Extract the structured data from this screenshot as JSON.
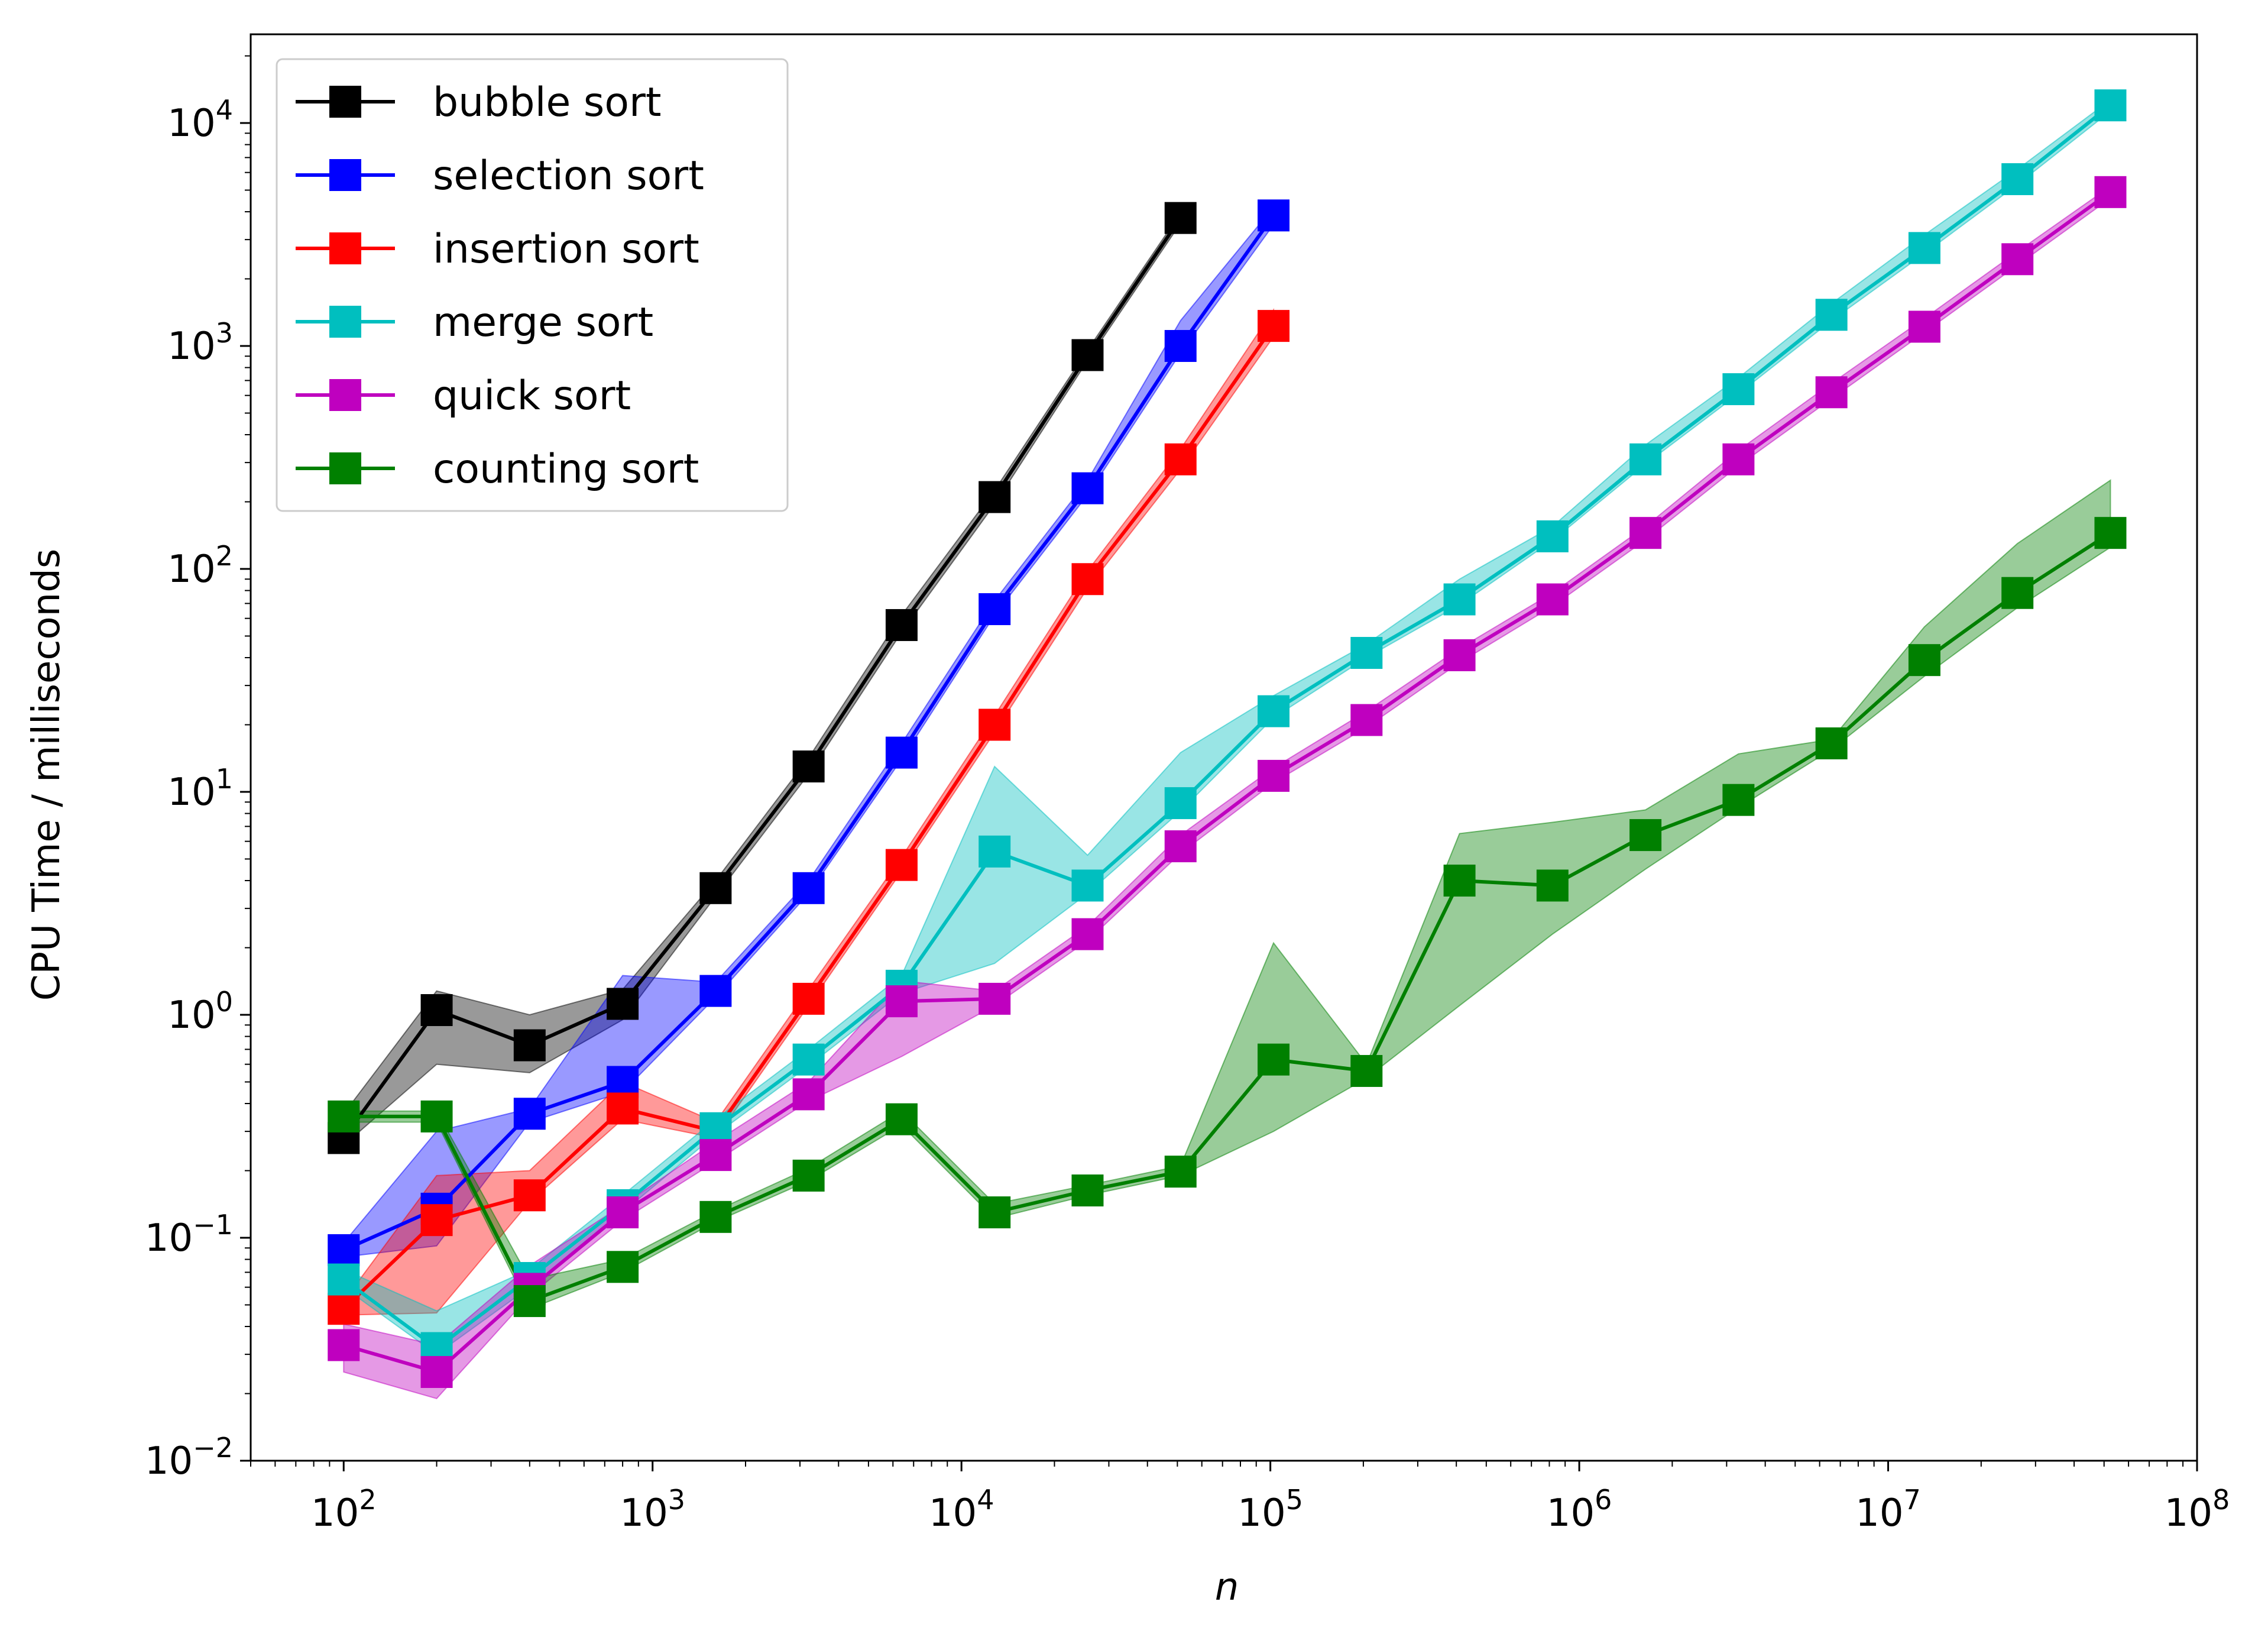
{
  "chart_data": {
    "type": "line",
    "title": "",
    "xlabel": "n",
    "ylabel": "CPU Time / milliseconds",
    "xscale": "log",
    "yscale": "log",
    "xlim": [
      50,
      100000000
    ],
    "ylim": [
      0.01,
      25000
    ],
    "xticks": [
      {
        "value": 100,
        "mantissa": "10",
        "exp": "2"
      },
      {
        "value": 1000,
        "mantissa": "10",
        "exp": "3"
      },
      {
        "value": 10000,
        "mantissa": "10",
        "exp": "4"
      },
      {
        "value": 100000,
        "mantissa": "10",
        "exp": "5"
      },
      {
        "value": 1000000,
        "mantissa": "10",
        "exp": "6"
      },
      {
        "value": 10000000,
        "mantissa": "10",
        "exp": "7"
      },
      {
        "value": 100000000,
        "mantissa": "10",
        "exp": "8"
      }
    ],
    "yticks": [
      {
        "value": 0.01,
        "mantissa": "10",
        "exp": "−2"
      },
      {
        "value": 0.1,
        "mantissa": "10",
        "exp": "−1"
      },
      {
        "value": 1,
        "mantissa": "10",
        "exp": "0"
      },
      {
        "value": 10,
        "mantissa": "10",
        "exp": "1"
      },
      {
        "value": 100,
        "mantissa": "10",
        "exp": "2"
      },
      {
        "value": 1000,
        "mantissa": "10",
        "exp": "3"
      },
      {
        "value": 10000,
        "mantissa": "10",
        "exp": "4"
      }
    ],
    "legend_position": "top-left",
    "grid": false,
    "series": [
      {
        "name": "bubble sort",
        "color": "#000000",
        "x": [
          100,
          200,
          400,
          800,
          1600,
          3200,
          6400,
          12800,
          25600,
          51200
        ],
        "y": [
          0.28,
          1.05,
          0.73,
          1.12,
          3.7,
          13.0,
          56.0,
          210.0,
          910.0,
          3750.0
        ],
        "lower": [
          0.26,
          0.6,
          0.55,
          0.95,
          3.4,
          12.0,
          52.0,
          195.0,
          860.0,
          3550.0
        ],
        "upper": [
          0.36,
          1.28,
          1.0,
          1.3,
          4.0,
          14.2,
          62.0,
          225.0,
          960.0,
          3950.0
        ]
      },
      {
        "name": "selection sort",
        "color": "#0000ff",
        "x": [
          100,
          200,
          400,
          800,
          1600,
          3200,
          6400,
          12800,
          25600,
          51200,
          102400
        ],
        "y": [
          0.088,
          0.135,
          0.36,
          0.5,
          1.28,
          3.7,
          15.0,
          66.0,
          230.0,
          1000.0,
          3850.0
        ],
        "lower": [
          0.082,
          0.092,
          0.33,
          0.45,
          1.2,
          3.5,
          14.0,
          62.0,
          215.0,
          930.0,
          3500.0
        ],
        "upper": [
          0.095,
          0.3,
          0.38,
          1.5,
          1.4,
          4.0,
          16.5,
          72.0,
          250.0,
          1300.0,
          4200.0
        ]
      },
      {
        "name": "insertion sort",
        "color": "#ff0000",
        "x": [
          100,
          200,
          400,
          800,
          1600,
          3200,
          6400,
          12800,
          25600,
          51200,
          102400
        ],
        "y": [
          0.048,
          0.12,
          0.155,
          0.38,
          0.3,
          1.18,
          4.7,
          20.0,
          90.0,
          310.0,
          1230.0
        ],
        "lower": [
          0.045,
          0.046,
          0.145,
          0.34,
          0.28,
          1.1,
          4.4,
          18.5,
          82.0,
          280.0,
          1100.0
        ],
        "upper": [
          0.052,
          0.19,
          0.2,
          0.5,
          0.33,
          1.3,
          5.1,
          22.0,
          98.0,
          345.0,
          1450.0
        ]
      },
      {
        "name": "merge sort",
        "color": "#00bfbf",
        "x": [
          100,
          200,
          400,
          800,
          1600,
          3200,
          6400,
          12800,
          25600,
          51200,
          102400,
          204800,
          409600,
          819200,
          1638400,
          3276800,
          6553600,
          13107200,
          26214400,
          52428800
        ],
        "y": [
          0.065,
          0.032,
          0.066,
          0.14,
          0.31,
          0.63,
          1.35,
          5.4,
          3.8,
          8.9,
          23.0,
          42.0,
          73.0,
          140.0,
          310.0,
          640.0,
          1380.0,
          2750.0,
          5600.0,
          12000.0
        ],
        "lower": [
          0.06,
          0.03,
          0.06,
          0.13,
          0.29,
          0.59,
          1.25,
          1.7,
          3.5,
          8.2,
          21.5,
          40.0,
          69.0,
          134.0,
          295.0,
          610.0,
          1300.0,
          2600.0,
          5300.0,
          11300.0
        ],
        "upper": [
          0.072,
          0.047,
          0.072,
          0.155,
          0.34,
          0.7,
          1.5,
          13.0,
          5.2,
          15.0,
          27.0,
          46.0,
          90.0,
          155.0,
          360.0,
          720.0,
          1550.0,
          3150.0,
          6200.0,
          12700.0
        ]
      },
      {
        "name": "quick sort",
        "color": "#bf00bf",
        "x": [
          100,
          200,
          400,
          800,
          1600,
          3200,
          6400,
          12800,
          25600,
          51200,
          102400,
          204800,
          409600,
          819200,
          1638400,
          3276800,
          6553600,
          13107200,
          26214400,
          52428800
        ],
        "y": [
          0.033,
          0.025,
          0.059,
          0.13,
          0.235,
          0.44,
          1.15,
          1.18,
          2.3,
          5.7,
          11.8,
          21.0,
          41.0,
          73.0,
          145.0,
          310.0,
          620.0,
          1220.0,
          2450.0,
          4900.0
        ],
        "lower": [
          0.025,
          0.019,
          0.055,
          0.12,
          0.22,
          0.41,
          0.65,
          1.1,
          2.15,
          5.3,
          11.0,
          19.5,
          38.0,
          68.0,
          135.0,
          290.0,
          580.0,
          1150.0,
          2300.0,
          4600.0
        ],
        "upper": [
          0.041,
          0.033,
          0.075,
          0.14,
          0.27,
          0.5,
          1.42,
          1.28,
          2.5,
          6.4,
          12.8,
          23.0,
          44.0,
          78.0,
          155.0,
          340.0,
          680.0,
          1330.0,
          2650.0,
          5200.0
        ]
      },
      {
        "name": "counting sort",
        "color": "#008000",
        "x": [
          100,
          200,
          400,
          800,
          1600,
          3200,
          6400,
          12800,
          25600,
          51200,
          102400,
          204800,
          409600,
          819200,
          1638400,
          3276800,
          6553600,
          13107200,
          26214400,
          52428800
        ],
        "y": [
          0.35,
          0.35,
          0.052,
          0.074,
          0.124,
          0.19,
          0.34,
          0.13,
          0.163,
          0.198,
          0.63,
          0.56,
          4.0,
          3.8,
          6.4,
          9.2,
          16.5,
          39.0,
          78.0,
          145.0
        ],
        "lower": [
          0.33,
          0.33,
          0.048,
          0.07,
          0.118,
          0.18,
          0.32,
          0.122,
          0.155,
          0.19,
          0.3,
          0.52,
          1.1,
          2.3,
          4.5,
          8.5,
          15.5,
          33.0,
          67.0,
          125.0
        ],
        "upper": [
          0.37,
          0.37,
          0.065,
          0.08,
          0.132,
          0.205,
          0.37,
          0.142,
          0.172,
          0.21,
          2.1,
          0.6,
          6.5,
          7.3,
          8.3,
          14.8,
          17.2,
          55.0,
          130.0,
          250.0
        ]
      }
    ]
  }
}
